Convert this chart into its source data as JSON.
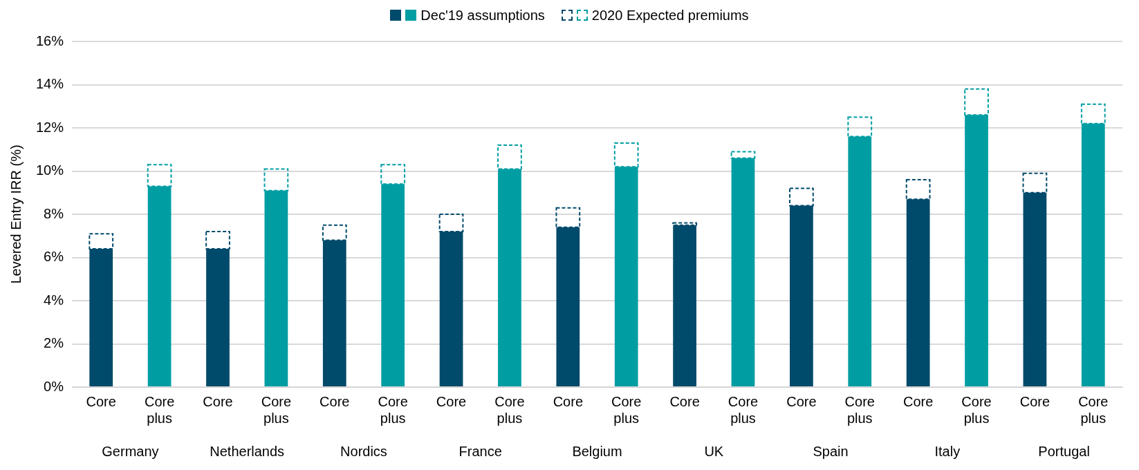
{
  "chart_data": {
    "type": "bar",
    "stacked": true,
    "ylabel": "Levered Entry IRR (%)",
    "categories": [
      "Core",
      "Core plus",
      "Core",
      "Core plus",
      "Core",
      "Core plus",
      "Core",
      "Core plus",
      "Core",
      "Core plus",
      "Core",
      "Core plus",
      "Core",
      "Core plus",
      "Core",
      "Core plus",
      "Core",
      "Core plus"
    ],
    "series": [
      {
        "name": "Dec'19 assumptions",
        "colors": [
          "#004a6b",
          "#009ea3",
          "#004a6b",
          "#009ea3",
          "#004a6b",
          "#009ea3",
          "#004a6b",
          "#009ea3",
          "#004a6b",
          "#009ea3",
          "#004a6b",
          "#009ea3",
          "#004a6b",
          "#009ea3",
          "#004a6b",
          "#009ea3",
          "#004a6b",
          "#009ea3"
        ],
        "values": [
          6.4,
          9.3,
          6.4,
          9.1,
          6.8,
          9.4,
          7.2,
          10.1,
          7.4,
          10.2,
          7.5,
          10.6,
          8.4,
          11.6,
          8.7,
          12.6,
          9.0,
          12.2
        ]
      },
      {
        "name": "2020 Expected premiums",
        "line_style": "dashed",
        "colors": [
          "#004a6b",
          "#009ea3",
          "#004a6b",
          "#009ea3",
          "#004a6b",
          "#009ea3",
          "#004a6b",
          "#009ea3",
          "#004a6b",
          "#009ea3",
          "#004a6b",
          "#009ea3",
          "#004a6b",
          "#009ea3",
          "#004a6b",
          "#009ea3",
          "#004a6b",
          "#009ea3"
        ],
        "values": [
          0.7,
          1.0,
          0.8,
          1.0,
          0.7,
          0.9,
          0.8,
          1.1,
          0.9,
          1.1,
          0.1,
          0.3,
          0.8,
          0.9,
          0.9,
          1.2,
          0.9,
          0.9
        ]
      }
    ],
    "ylim": [
      0,
      16
    ],
    "yticks": [
      {
        "value": 0,
        "label": "0%"
      },
      {
        "value": 2,
        "label": "2%"
      },
      {
        "value": 4,
        "label": "4%"
      },
      {
        "value": 6,
        "label": "6%"
      },
      {
        "value": 8,
        "label": "8%"
      },
      {
        "value": 10,
        "label": "10%"
      },
      {
        "value": 12,
        "label": "12%"
      },
      {
        "value": 14,
        "label": "14%"
      },
      {
        "value": 16,
        "label": "16%"
      }
    ],
    "grid": "y",
    "legend": "top",
    "annotations": [
      "Germany",
      "Netherlands",
      "Nordics",
      "France",
      "Belgium",
      "UK",
      "Spain",
      "Italy",
      "Portugal"
    ]
  }
}
